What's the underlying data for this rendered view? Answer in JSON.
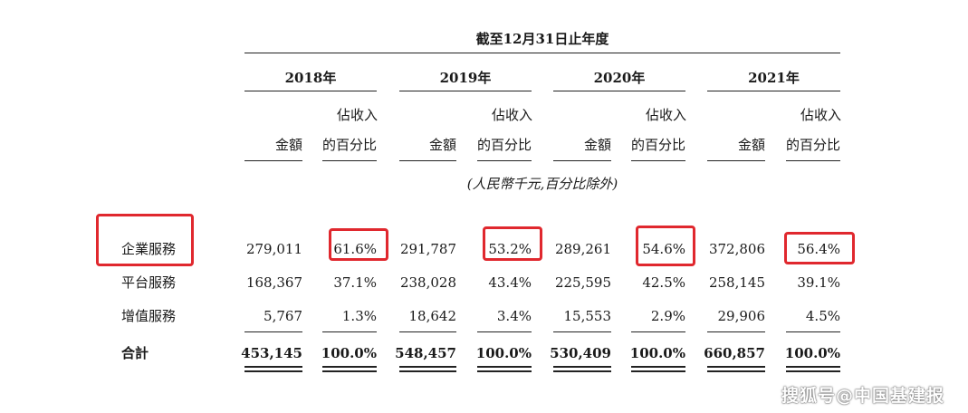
{
  "header": {
    "period": "截至12月31日止年度",
    "years": [
      "2018年",
      "2019年",
      "2020年",
      "2021年"
    ],
    "amount_label": "金額",
    "pct_label_line1": "佔收入",
    "pct_label_line2": "的百分比",
    "unit_note": "(人民幣千元,百分比除外)"
  },
  "rows": [
    {
      "label": "企業服務",
      "cells": [
        "279,011",
        "61.6%",
        "291,787",
        "53.2%",
        "289,261",
        "54.6%",
        "372,806",
        "56.4%"
      ]
    },
    {
      "label": "平台服務",
      "cells": [
        "168,367",
        "37.1%",
        "238,028",
        "43.4%",
        "225,595",
        "42.5%",
        "258,145",
        "39.1%"
      ]
    },
    {
      "label": "增值服務",
      "cells": [
        "5,767",
        "1.3%",
        "18,642",
        "3.4%",
        "15,553",
        "2.9%",
        "29,906",
        "4.5%"
      ]
    },
    {
      "label": "合計",
      "cells": [
        "453,145",
        "100.0%",
        "548,457",
        "100.0%",
        "530,409",
        "100.0%",
        "660,857",
        "100.0%"
      ]
    }
  ],
  "highlight_color": "#e0282e",
  "watermark": "搜狐号@中国基建报"
}
